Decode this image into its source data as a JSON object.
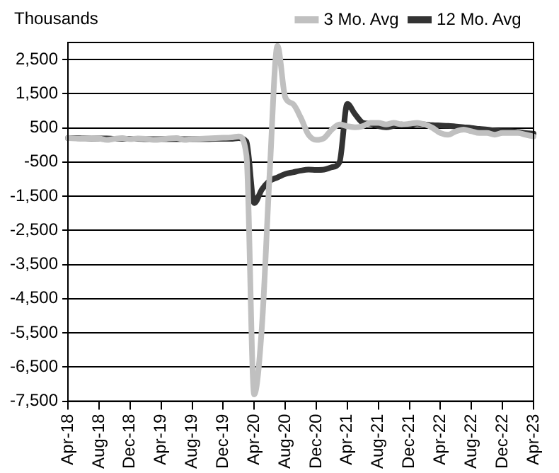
{
  "chart_data": {
    "type": "line",
    "ylabel": "Thousands",
    "categories": [
      "Apr-18",
      null,
      null,
      null,
      "Aug-18",
      null,
      null,
      null,
      "Dec-18",
      null,
      null,
      null,
      "Apr-19",
      null,
      null,
      null,
      "Aug-19",
      null,
      null,
      null,
      "Dec-19",
      null,
      null,
      null,
      "Apr-20",
      null,
      null,
      null,
      "Aug-20",
      null,
      null,
      null,
      "Dec-20",
      null,
      null,
      null,
      "Apr-21",
      null,
      null,
      null,
      "Aug-21",
      null,
      null,
      null,
      "Dec-21",
      null,
      null,
      null,
      "Apr-22",
      null,
      null,
      null,
      "Aug-22",
      null,
      null,
      null,
      "Dec-22",
      null,
      null,
      null,
      "Apr-23"
    ],
    "series": [
      {
        "name": "3 Mo. Avg",
        "color": "#c0c0c0",
        "values": [
          200,
          190,
          180,
          200,
          190,
          150,
          180,
          200,
          170,
          190,
          180,
          150,
          160,
          190,
          200,
          150,
          170,
          180,
          190,
          200,
          210,
          220,
          250,
          -300,
          -7300,
          -5300,
          -800,
          2900,
          1400,
          1200,
          800,
          300,
          150,
          200,
          450,
          600,
          550,
          520,
          550,
          650,
          650,
          600,
          650,
          600,
          620,
          650,
          600,
          500,
          350,
          300,
          400,
          450,
          400,
          350,
          350,
          300,
          350,
          350,
          350,
          300,
          250
        ]
      },
      {
        "name": "12 Mo. Avg",
        "color": "#333333",
        "values": [
          200,
          200,
          190,
          190,
          190,
          190,
          180,
          180,
          180,
          180,
          170,
          170,
          170,
          170,
          170,
          170,
          170,
          170,
          170,
          180,
          180,
          180,
          200,
          100,
          -1700,
          -1300,
          -1050,
          -950,
          -850,
          -800,
          -750,
          -720,
          -730,
          -720,
          -650,
          -500,
          1200,
          900,
          650,
          620,
          550,
          520,
          560,
          600,
          580,
          620,
          600,
          580,
          570,
          560,
          540,
          520,
          500,
          470,
          450,
          420,
          400,
          400,
          380,
          350,
          330
        ]
      }
    ],
    "ylim": [
      -7500,
      3000
    ],
    "yticks": [
      {
        "value": 2500,
        "label": "2,500"
      },
      {
        "value": 1500,
        "label": "1,500"
      },
      500,
      -500,
      {
        "value": -1500,
        "label": "-1,500"
      },
      {
        "value": -2500,
        "label": "-2,500"
      },
      {
        "value": -3500,
        "label": "-3,500"
      },
      {
        "value": -4500,
        "label": "-4,500"
      },
      {
        "value": -5500,
        "label": "-5,500"
      },
      {
        "value": -6500,
        "label": "-6,500"
      },
      {
        "value": -7500,
        "label": "-7,500"
      }
    ],
    "grid": "y",
    "legend": "top",
    "marker": "none",
    "line_style": "solid"
  }
}
